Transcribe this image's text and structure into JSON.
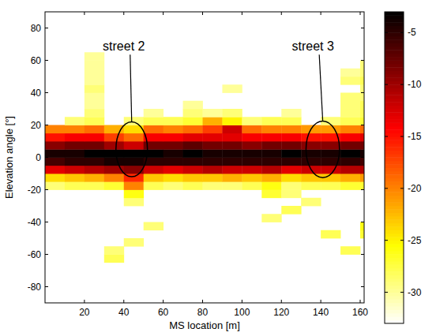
{
  "chart_data": {
    "type": "heatmap",
    "x_label": "MS location [m]",
    "y_label": "Elevation angle [°]",
    "xlim": [
      0,
      162
    ],
    "ylim": [
      -90,
      90
    ],
    "xticks": [
      20,
      40,
      60,
      80,
      100,
      120,
      140,
      160
    ],
    "yticks": [
      -80,
      -60,
      -40,
      -20,
      0,
      20,
      40,
      60,
      80
    ],
    "grid": false,
    "x_bins": [
      0,
      10,
      20,
      30,
      40,
      50,
      60,
      70,
      80,
      90,
      100,
      110,
      120,
      130,
      140,
      150,
      160,
      162
    ],
    "y_bins": [
      -65,
      -60,
      -55,
      -50,
      -45,
      -40,
      -35,
      -30,
      -25,
      -20,
      -15,
      -10,
      -5,
      0,
      5,
      10,
      15,
      20,
      25,
      30,
      35,
      40,
      45,
      50,
      55,
      60,
      65
    ],
    "cells": [
      [
        null,
        null,
        null,
        -28,
        null,
        null,
        null,
        null,
        null,
        null,
        null,
        null,
        null,
        null,
        null,
        null,
        null
      ],
      [
        null,
        null,
        null,
        -29,
        null,
        null,
        null,
        null,
        null,
        null,
        null,
        null,
        null,
        null,
        null,
        -28,
        null
      ],
      [
        null,
        null,
        null,
        null,
        -29,
        null,
        null,
        null,
        null,
        null,
        null,
        null,
        null,
        null,
        null,
        null,
        null
      ],
      [
        null,
        null,
        null,
        null,
        null,
        null,
        null,
        null,
        null,
        null,
        null,
        null,
        null,
        null,
        -28,
        null,
        -27
      ],
      [
        null,
        null,
        null,
        null,
        null,
        -29,
        null,
        null,
        null,
        null,
        null,
        null,
        null,
        null,
        null,
        null,
        -26
      ],
      [
        null,
        null,
        null,
        null,
        null,
        null,
        null,
        null,
        null,
        null,
        null,
        -29,
        null,
        null,
        null,
        null,
        null
      ],
      [
        null,
        null,
        null,
        null,
        null,
        null,
        null,
        null,
        null,
        null,
        null,
        null,
        -28,
        null,
        null,
        null,
        null
      ],
      [
        null,
        null,
        null,
        null,
        -29,
        null,
        null,
        null,
        null,
        null,
        null,
        null,
        null,
        -29,
        null,
        null,
        null
      ],
      [
        null,
        null,
        null,
        null,
        -26,
        null,
        null,
        null,
        null,
        null,
        null,
        -27,
        -29,
        null,
        null,
        null,
        null
      ],
      [
        -29,
        -28,
        -28,
        -27,
        -20,
        -28,
        -29,
        -28,
        -29,
        -29,
        -28,
        -26,
        -29,
        -28,
        -28,
        -27,
        -27
      ],
      [
        -24,
        -23,
        -22,
        -20,
        -16,
        -23,
        -24,
        -23,
        -23,
        -22,
        -23,
        -22,
        -24,
        -23,
        -23,
        -22,
        -21
      ],
      [
        -13,
        -12,
        -11,
        -10,
        -9,
        -12,
        -13,
        -12,
        -11,
        -12,
        -12,
        -11,
        -13,
        -12,
        -12,
        -11,
        -11
      ],
      [
        -6,
        -5,
        -5,
        -4,
        -4,
        -5,
        -5,
        -5,
        -5,
        -5,
        -5,
        -5,
        -5,
        -5,
        -5,
        -5,
        -6
      ],
      [
        -4,
        -4,
        -3,
        -3,
        -3,
        -3,
        -4,
        -3,
        -4,
        -4,
        -4,
        -4,
        -3,
        -4,
        -4,
        -3,
        -4
      ],
      [
        -9,
        -8,
        -8,
        -10,
        -12,
        -8,
        -8,
        -7,
        -8,
        -8,
        -9,
        -8,
        -8,
        -9,
        -9,
        -8,
        -8
      ],
      [
        -15,
        -14,
        -14,
        -17,
        -19,
        -14,
        -14,
        -13,
        -13,
        -13,
        -14,
        -14,
        -14,
        -15,
        -15,
        -14,
        -13
      ],
      [
        -20,
        -20,
        -19,
        -22,
        -24,
        -19,
        -20,
        -19,
        -17,
        -12,
        -19,
        -20,
        -20,
        -21,
        -21,
        -20,
        -19
      ],
      [
        null,
        -29,
        -28,
        null,
        -29,
        -28,
        -28,
        -27,
        -22,
        -25,
        -29,
        -28,
        -28,
        null,
        -29,
        -28,
        -27
      ],
      [
        null,
        null,
        -29,
        null,
        null,
        -30,
        null,
        -29,
        -30,
        -29,
        null,
        null,
        -30,
        null,
        null,
        -29,
        -28
      ],
      [
        null,
        null,
        -30,
        null,
        null,
        null,
        null,
        -30,
        null,
        null,
        null,
        null,
        null,
        null,
        null,
        -29,
        -28
      ],
      [
        null,
        null,
        -30,
        null,
        null,
        null,
        null,
        null,
        null,
        null,
        null,
        null,
        null,
        null,
        null,
        -29,
        -29
      ],
      [
        null,
        null,
        -29,
        null,
        null,
        null,
        null,
        null,
        null,
        -30,
        null,
        null,
        null,
        null,
        null,
        null,
        -29
      ],
      [
        null,
        null,
        -30,
        null,
        null,
        null,
        null,
        null,
        null,
        null,
        null,
        null,
        null,
        null,
        null,
        -29,
        -28
      ],
      [
        null,
        null,
        -30,
        null,
        null,
        null,
        null,
        null,
        null,
        null,
        null,
        null,
        null,
        null,
        null,
        -30,
        -29
      ],
      [
        null,
        null,
        -30,
        null,
        null,
        null,
        null,
        null,
        null,
        null,
        null,
        null,
        null,
        null,
        null,
        null,
        -29
      ],
      [
        null,
        null,
        -30,
        null,
        null,
        null,
        null,
        null,
        null,
        null,
        null,
        null,
        null,
        null,
        null,
        null,
        null
      ]
    ],
    "colorbar": {
      "range": [
        -33,
        -3
      ],
      "ticks": [
        -5,
        -10,
        -15,
        -20,
        -25,
        -30
      ]
    },
    "annotations": [
      {
        "text": "street 2",
        "x": 44,
        "y": 5,
        "rx": 8,
        "ry": 17,
        "text_x": 40,
        "text_y": 66
      },
      {
        "text": "street 3",
        "x": 141,
        "y": 5,
        "rx": 8.5,
        "ry": 17.5,
        "text_x": 136,
        "text_y": 66
      }
    ]
  }
}
